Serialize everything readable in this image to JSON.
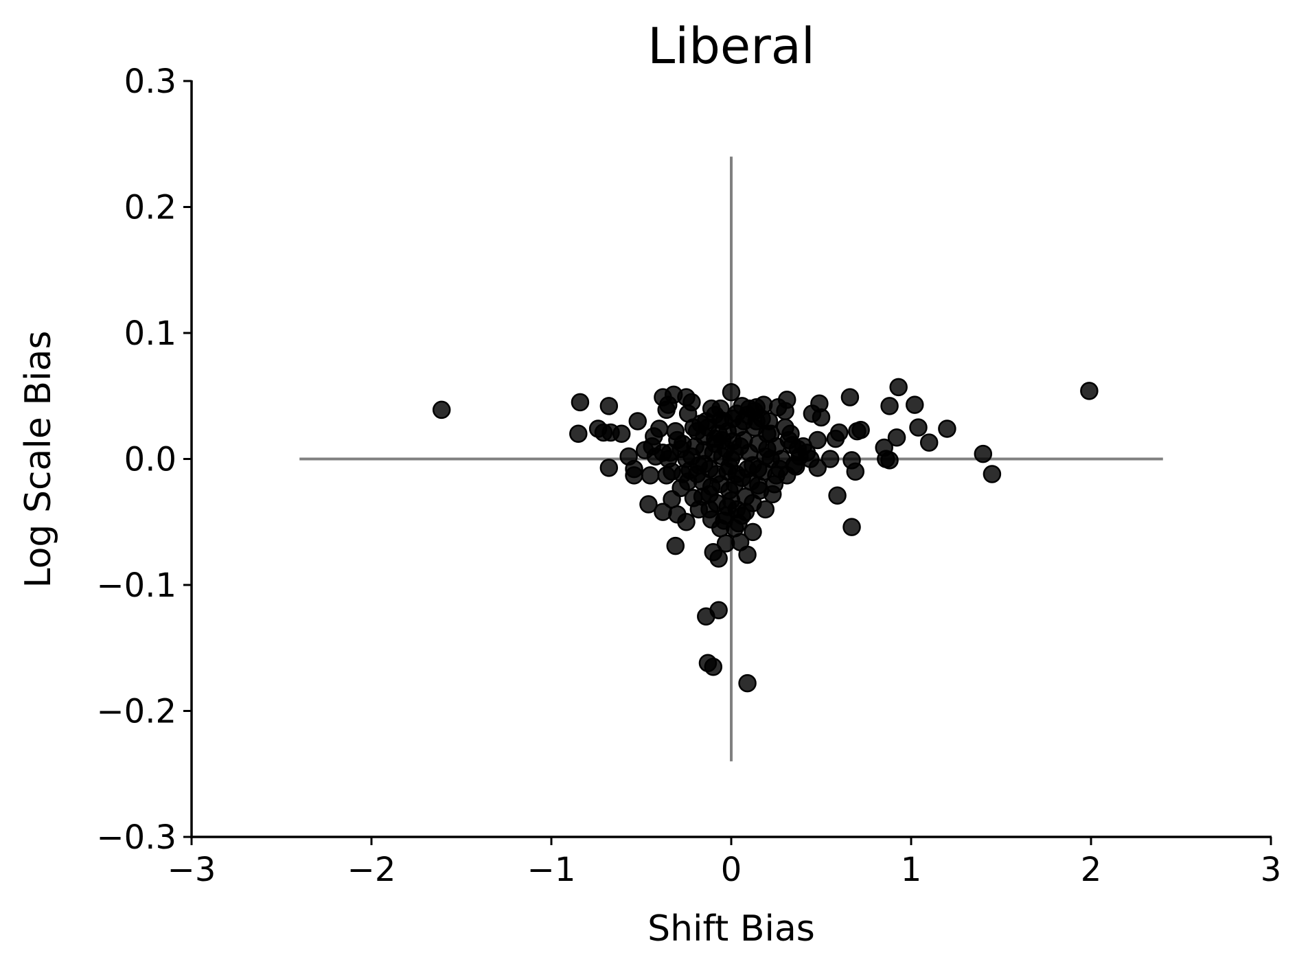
{
  "chart_data": {
    "type": "scatter",
    "title": "Liberal",
    "xlabel": "Shift Bias",
    "ylabel": "Log Scale Bias",
    "xlim": [
      -3,
      3
    ],
    "ylim": [
      -0.3,
      0.3
    ],
    "xticks": [
      -3,
      -2,
      -1,
      0,
      1,
      2,
      3
    ],
    "yticks": [
      -0.3,
      -0.2,
      -0.1,
      0.0,
      0.1,
      0.2,
      0.3
    ],
    "xtick_labels": [
      "−3",
      "−2",
      "−1",
      "0",
      "1",
      "2",
      "3"
    ],
    "ytick_labels": [
      "−0.3",
      "−0.2",
      "−0.1",
      "0.0",
      "0.1",
      "0.2",
      "0.3"
    ],
    "grid": false,
    "marker_color": "#000000",
    "reference_line_color": "#808080",
    "reference_lines": {
      "horizontal": {
        "y": 0,
        "x_range": [
          -2.4,
          2.4
        ]
      },
      "vertical": {
        "x": 0,
        "y_range": [
          -0.24,
          0.24
        ]
      }
    },
    "points": [
      [
        -1.61,
        0.039
      ],
      [
        1.99,
        0.054
      ],
      [
        1.4,
        0.004
      ],
      [
        1.45,
        -0.012
      ],
      [
        1.2,
        0.024
      ],
      [
        1.1,
        0.013
      ],
      [
        1.04,
        0.025
      ],
      [
        1.02,
        0.043
      ],
      [
        0.93,
        0.057
      ],
      [
        0.92,
        0.017
      ],
      [
        0.88,
        0.042
      ],
      [
        0.88,
        -0.001
      ],
      [
        0.85,
        0.009
      ],
      [
        0.86,
        0.0
      ],
      [
        0.7,
        0.022
      ],
      [
        0.72,
        0.023
      ],
      [
        0.66,
        0.049
      ],
      [
        0.67,
        -0.001
      ],
      [
        0.69,
        -0.01
      ],
      [
        0.67,
        -0.054
      ],
      [
        0.59,
        -0.029
      ],
      [
        0.6,
        0.021
      ],
      [
        0.58,
        0.016
      ],
      [
        0.55,
        0.0
      ],
      [
        0.5,
        0.033
      ],
      [
        0.49,
        0.044
      ],
      [
        0.48,
        -0.007
      ],
      [
        0.45,
        0.036
      ],
      [
        0.42,
        0.005
      ],
      [
        0.38,
        0.002
      ],
      [
        0.36,
        -0.006
      ],
      [
        0.34,
        0.011
      ],
      [
        0.3,
        0.038
      ],
      [
        0.31,
        0.047
      ],
      [
        0.3,
        0.025
      ],
      [
        0.31,
        -0.013
      ],
      [
        0.26,
        0.041
      ],
      [
        0.25,
        -0.013
      ],
      [
        0.23,
        -0.028
      ],
      [
        0.22,
        0.02
      ],
      [
        0.2,
        0.008
      ],
      [
        0.19,
        -0.04
      ],
      [
        0.18,
        0.043
      ],
      [
        0.15,
        -0.021
      ],
      [
        0.14,
        0.041
      ],
      [
        0.13,
        0.025
      ],
      [
        0.12,
        -0.058
      ],
      [
        0.1,
        0.04
      ],
      [
        0.09,
        -0.076
      ],
      [
        0.09,
        -0.178
      ],
      [
        0.08,
        -0.042
      ],
      [
        0.07,
        0.03
      ],
      [
        0.05,
        -0.066
      ],
      [
        0.04,
        -0.051
      ],
      [
        0.03,
        0.036
      ],
      [
        0.02,
        -0.02
      ],
      [
        0.01,
        0.014
      ],
      [
        0.0,
        0.053
      ],
      [
        0.0,
        -0.033
      ],
      [
        -0.01,
        -0.006
      ],
      [
        -0.02,
        0.022
      ],
      [
        -0.03,
        -0.067
      ],
      [
        -0.04,
        -0.049
      ],
      [
        -0.05,
        0.002
      ],
      [
        -0.06,
        0.031
      ],
      [
        -0.07,
        -0.079
      ],
      [
        -0.07,
        -0.12
      ],
      [
        -0.08,
        -0.012
      ],
      [
        -0.09,
        0.016
      ],
      [
        -0.1,
        -0.074
      ],
      [
        -0.1,
        -0.165
      ],
      [
        -0.11,
        0.04
      ],
      [
        -0.11,
        -0.048
      ],
      [
        -0.12,
        -0.028
      ],
      [
        -0.13,
        -0.162
      ],
      [
        -0.14,
        -0.125
      ],
      [
        -0.15,
        0.007
      ],
      [
        -0.16,
        -0.018
      ],
      [
        -0.18,
        -0.04
      ],
      [
        -0.19,
        0.022
      ],
      [
        -0.21,
        -0.031
      ],
      [
        -0.22,
        0.045
      ],
      [
        -0.23,
        -0.009
      ],
      [
        -0.24,
        0.036
      ],
      [
        -0.25,
        0.049
      ],
      [
        -0.25,
        -0.05
      ],
      [
        -0.27,
        0.012
      ],
      [
        -0.28,
        -0.023
      ],
      [
        -0.3,
        -0.044
      ],
      [
        -0.31,
        -0.069
      ],
      [
        -0.32,
        0.051
      ],
      [
        -0.33,
        -0.032
      ],
      [
        -0.34,
        0.005
      ],
      [
        -0.35,
        0.043
      ],
      [
        -0.36,
        -0.013
      ],
      [
        -0.36,
        0.039
      ],
      [
        -0.38,
        0.049
      ],
      [
        -0.38,
        -0.042
      ],
      [
        -0.4,
        0.024
      ],
      [
        -0.42,
        0.002
      ],
      [
        -0.43,
        0.018
      ],
      [
        -0.45,
        -0.013
      ],
      [
        -0.46,
        -0.036
      ],
      [
        -0.48,
        0.007
      ],
      [
        -0.52,
        0.03
      ],
      [
        -0.54,
        -0.013
      ],
      [
        -0.54,
        -0.008
      ],
      [
        -0.57,
        0.002
      ],
      [
        -0.61,
        0.02
      ],
      [
        -0.67,
        0.021
      ],
      [
        -0.68,
        -0.007
      ],
      [
        -0.68,
        0.042
      ],
      [
        -0.71,
        0.021
      ],
      [
        -0.74,
        0.024
      ],
      [
        -0.84,
        0.045
      ],
      [
        -0.85,
        0.02
      ],
      [
        0.0,
        0.0
      ],
      [
        0.02,
        0.005
      ],
      [
        -0.02,
        -0.01
      ],
      [
        0.05,
        0.01
      ],
      [
        -0.05,
        0.015
      ],
      [
        0.06,
        -0.015
      ],
      [
        -0.06,
        -0.02
      ],
      [
        0.1,
        0.005
      ],
      [
        -0.1,
        0.005
      ],
      [
        0.12,
        -0.005
      ],
      [
        -0.12,
        -0.008
      ],
      [
        0.15,
        0.012
      ],
      [
        -0.15,
        0.018
      ],
      [
        0.18,
        -0.01
      ],
      [
        -0.18,
        -0.005
      ],
      [
        0.2,
        0.02
      ],
      [
        -0.2,
        0.01
      ],
      [
        0.22,
        0.0
      ],
      [
        -0.22,
        0.002
      ],
      [
        0.25,
        0.01
      ],
      [
        -0.25,
        0.0
      ],
      [
        0.28,
        0.0
      ],
      [
        -0.28,
        0.008
      ],
      [
        0.04,
        0.025
      ],
      [
        -0.04,
        0.03
      ],
      [
        0.08,
        -0.03
      ],
      [
        -0.08,
        -0.035
      ],
      [
        0.03,
        -0.04
      ],
      [
        -0.03,
        -0.045
      ],
      [
        0.14,
        0.03
      ],
      [
        -0.14,
        0.03
      ],
      [
        0.16,
        -0.025
      ],
      [
        -0.16,
        -0.03
      ],
      [
        0.07,
        0.015
      ],
      [
        -0.07,
        0.02
      ],
      [
        0.11,
        -0.018
      ],
      [
        -0.11,
        -0.022
      ],
      [
        0.01,
        0.032
      ],
      [
        -0.01,
        -0.025
      ],
      [
        0.24,
        -0.02
      ],
      [
        -0.24,
        -0.018
      ],
      [
        0.32,
        0.015
      ],
      [
        -0.3,
        0.015
      ],
      [
        0.35,
        -0.005
      ],
      [
        -0.33,
        -0.01
      ],
      [
        0.4,
        0.01
      ],
      [
        -0.38,
        0.005
      ],
      [
        0.44,
        0.0
      ],
      [
        0.48,
        0.015
      ],
      [
        -0.44,
        0.01
      ],
      [
        0.09,
        0.035
      ],
      [
        -0.09,
        0.035
      ],
      [
        0.13,
        0.038
      ],
      [
        -0.13,
        0.025
      ],
      [
        0.17,
        0.032
      ],
      [
        -0.17,
        0.028
      ],
      [
        0.21,
        0.03
      ],
      [
        -0.21,
        0.025
      ],
      [
        0.06,
        0.042
      ],
      [
        -0.06,
        0.04
      ],
      [
        0.03,
        -0.012
      ],
      [
        -0.03,
        0.008
      ],
      [
        0.09,
        -0.008
      ],
      [
        -0.09,
        0.012
      ],
      [
        0.19,
        0.002
      ],
      [
        -0.19,
        -0.012
      ],
      [
        0.27,
        -0.008
      ],
      [
        -0.27,
        -0.012
      ],
      [
        0.02,
        -0.055
      ],
      [
        -0.02,
        -0.038
      ],
      [
        0.12,
        -0.035
      ],
      [
        -0.12,
        -0.04
      ],
      [
        0.06,
        -0.045
      ],
      [
        -0.06,
        -0.055
      ],
      [
        0.15,
        -0.008
      ],
      [
        -0.15,
        -0.004
      ],
      [
        0.33,
        0.02
      ],
      [
        -0.31,
        0.022
      ],
      [
        0.37,
        0.008
      ],
      [
        -0.35,
        0.0
      ]
    ]
  }
}
